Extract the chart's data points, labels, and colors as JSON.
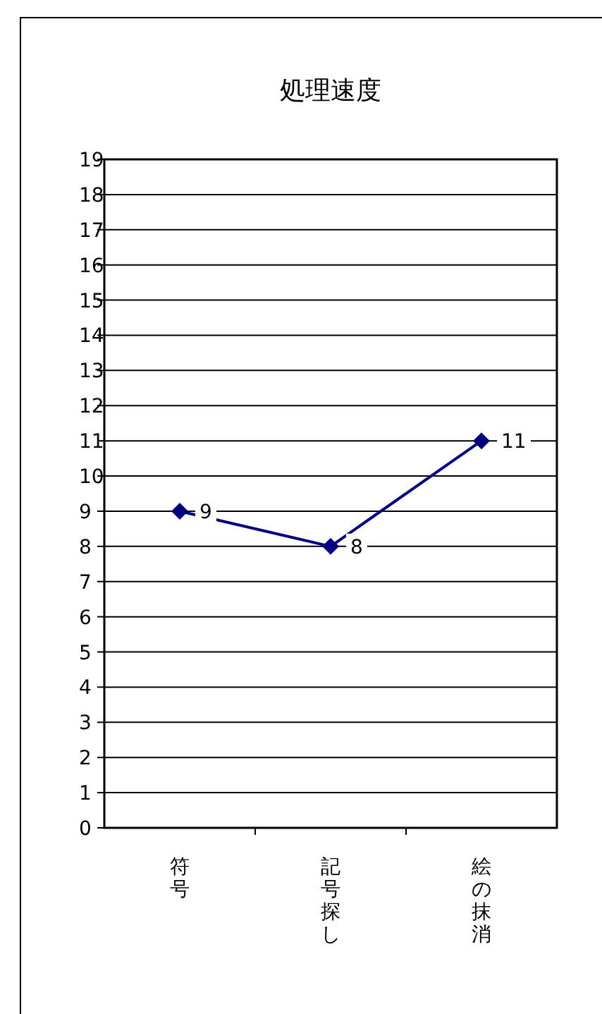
{
  "chart_data": {
    "type": "line",
    "title": "処理速度",
    "categories": [
      "符号",
      "記号探し",
      "絵の抹消"
    ],
    "series": [
      {
        "color": "#000080",
        "values": [
          9,
          8,
          11
        ]
      }
    ],
    "ylim": [
      0,
      19
    ],
    "yticks": [
      0,
      1,
      2,
      3,
      4,
      5,
      6,
      7,
      8,
      9,
      10,
      11,
      12,
      13,
      14,
      15,
      16,
      17,
      18,
      19
    ],
    "grid": "y",
    "marker": "diamond",
    "data_labels": true
  }
}
